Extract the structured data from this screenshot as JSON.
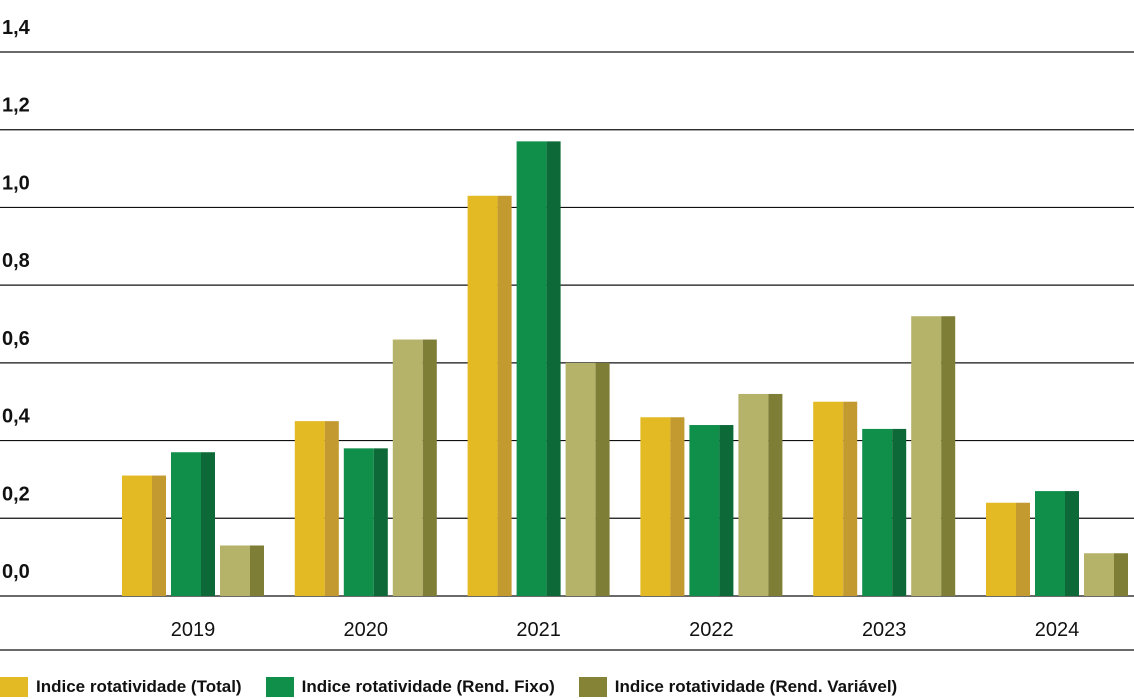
{
  "chart_data": {
    "type": "bar",
    "categories": [
      "2019",
      "2020",
      "2021",
      "2022",
      "2023",
      "2024"
    ],
    "series": [
      {
        "name": "Indice rotatividade (Total)",
        "values": [
          0.31,
          0.45,
          1.03,
          0.46,
          0.5,
          0.24
        ],
        "color": "#E3B924",
        "shade": "#C39A2F"
      },
      {
        "name": "Indice rotatividade (Rend. Fixo)",
        "values": [
          0.37,
          0.38,
          1.17,
          0.44,
          0.43,
          0.27
        ],
        "color": "#0F8F4A",
        "shade": "#0D6A38"
      },
      {
        "name": "Indice rotatividade (Rend. Variável)",
        "values": [
          0.13,
          0.66,
          0.6,
          0.52,
          0.72,
          0.11
        ],
        "color": "#B5B26A",
        "shade": "#7F7E36"
      }
    ],
    "yticks": [
      "0,0",
      "0,2",
      "0,4",
      "0,6",
      "0,8",
      "1,0",
      "1,2",
      "1,4"
    ],
    "ylim": [
      0,
      1.4
    ],
    "grid": true,
    "legend_position": "bottom-left"
  }
}
